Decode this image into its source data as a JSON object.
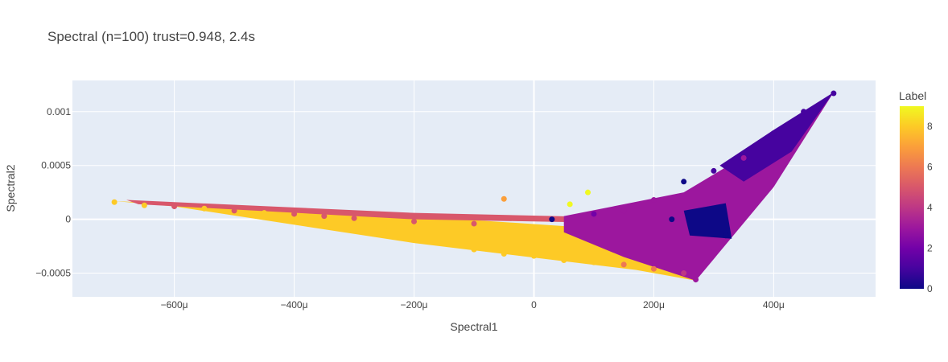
{
  "chart_data": {
    "type": "scatter",
    "title": "Spectral (n=100) trust=0.948, 2.4s",
    "xlabel": "Spectral1",
    "ylabel": "Spectral2",
    "xlim": [
      -0.00077,
      0.00057
    ],
    "ylim": [
      -0.00072,
      0.00129
    ],
    "x_ticks": [
      {
        "value": -0.0006,
        "label": "−600μ"
      },
      {
        "value": -0.0004,
        "label": "−400μ"
      },
      {
        "value": -0.0002,
        "label": "−200μ"
      },
      {
        "value": 0,
        "label": "0"
      },
      {
        "value": 0.0002,
        "label": "200μ"
      },
      {
        "value": 0.0004,
        "label": "400μ"
      }
    ],
    "y_ticks": [
      {
        "value": -0.0005,
        "label": "−0.0005"
      },
      {
        "value": 0,
        "label": "0"
      },
      {
        "value": 0.0005,
        "label": "0.0005"
      },
      {
        "value": 0.001,
        "label": "0.001"
      }
    ],
    "grid": true,
    "colorbar": {
      "title": "Label",
      "range": [
        0,
        9
      ],
      "ticks": [
        {
          "value": 0,
          "label": "0"
        },
        {
          "value": 2,
          "label": "2"
        },
        {
          "value": 4,
          "label": "4"
        },
        {
          "value": 6,
          "label": "6"
        },
        {
          "value": 8,
          "label": "8"
        }
      ],
      "colorscale": [
        "#0d0887",
        "#46039f",
        "#7201a8",
        "#9c179e",
        "#bd3786",
        "#d8576b",
        "#ed7953",
        "#fb9f3a",
        "#fdca26",
        "#f0f921"
      ]
    },
    "points": [
      {
        "x": -0.0007,
        "y": 0.00016,
        "label": 8
      },
      {
        "x": -0.00065,
        "y": 0.00013,
        "label": 8
      },
      {
        "x": -0.0006,
        "y": 0.00012,
        "label": 5
      },
      {
        "x": -0.00055,
        "y": 0.0001,
        "label": 8
      },
      {
        "x": -0.0005,
        "y": 8e-05,
        "label": 5
      },
      {
        "x": -0.00045,
        "y": 6e-05,
        "label": 8
      },
      {
        "x": -0.0004,
        "y": 5e-05,
        "label": 5
      },
      {
        "x": -0.0004,
        "y": -2e-05,
        "label": 8
      },
      {
        "x": -0.00035,
        "y": 3e-05,
        "label": 5
      },
      {
        "x": -0.0003,
        "y": 1e-05,
        "label": 5
      },
      {
        "x": -0.0003,
        "y": -8e-05,
        "label": 8
      },
      {
        "x": -0.00025,
        "y": -0.0001,
        "label": 8
      },
      {
        "x": -0.0002,
        "y": -2e-05,
        "label": 5
      },
      {
        "x": -0.0002,
        "y": -0.00018,
        "label": 8
      },
      {
        "x": -0.00015,
        "y": -0.00022,
        "label": 8
      },
      {
        "x": -0.0001,
        "y": -4e-05,
        "label": 5
      },
      {
        "x": -0.0001,
        "y": -0.00028,
        "label": 8
      },
      {
        "x": -5e-05,
        "y": 0.00019,
        "label": 7
      },
      {
        "x": -5e-05,
        "y": -0.00032,
        "label": 8
      },
      {
        "x": 0,
        "y": -0.00034,
        "label": 8
      },
      {
        "x": 3e-05,
        "y": 0,
        "label": 0
      },
      {
        "x": 6e-05,
        "y": 0.00014,
        "label": 9
      },
      {
        "x": 9e-05,
        "y": 0.00025,
        "label": 9
      },
      {
        "x": 5e-05,
        "y": -0.00038,
        "label": 8
      },
      {
        "x": 0.0001,
        "y": -0.0004,
        "label": 8
      },
      {
        "x": 0.0001,
        "y": 5e-05,
        "label": 2
      },
      {
        "x": 0.00015,
        "y": -0.00042,
        "label": 6
      },
      {
        "x": 0.00015,
        "y": 8e-05,
        "label": 3
      },
      {
        "x": 0.0002,
        "y": -0.00046,
        "label": 6
      },
      {
        "x": 0.0002,
        "y": 0.00018,
        "label": 3
      },
      {
        "x": 0.00023,
        "y": 0.0,
        "label": 0
      },
      {
        "x": 0.00025,
        "y": -0.0005,
        "label": 4
      },
      {
        "x": 0.00025,
        "y": 0.00035,
        "label": 0
      },
      {
        "x": 0.00027,
        "y": -0.00056,
        "label": 3
      },
      {
        "x": 0.0003,
        "y": -0.0003,
        "label": 3
      },
      {
        "x": 0.0003,
        "y": 0.00045,
        "label": 1
      },
      {
        "x": 0.00032,
        "y": -0.00015,
        "label": 0
      },
      {
        "x": 0.00035,
        "y": 0.00057,
        "label": 3
      },
      {
        "x": 0.0004,
        "y": 0.0008,
        "label": 1
      },
      {
        "x": 0.00045,
        "y": 0.001,
        "label": 1
      },
      {
        "x": 0.0005,
        "y": 0.00117,
        "label": 1
      }
    ]
  }
}
